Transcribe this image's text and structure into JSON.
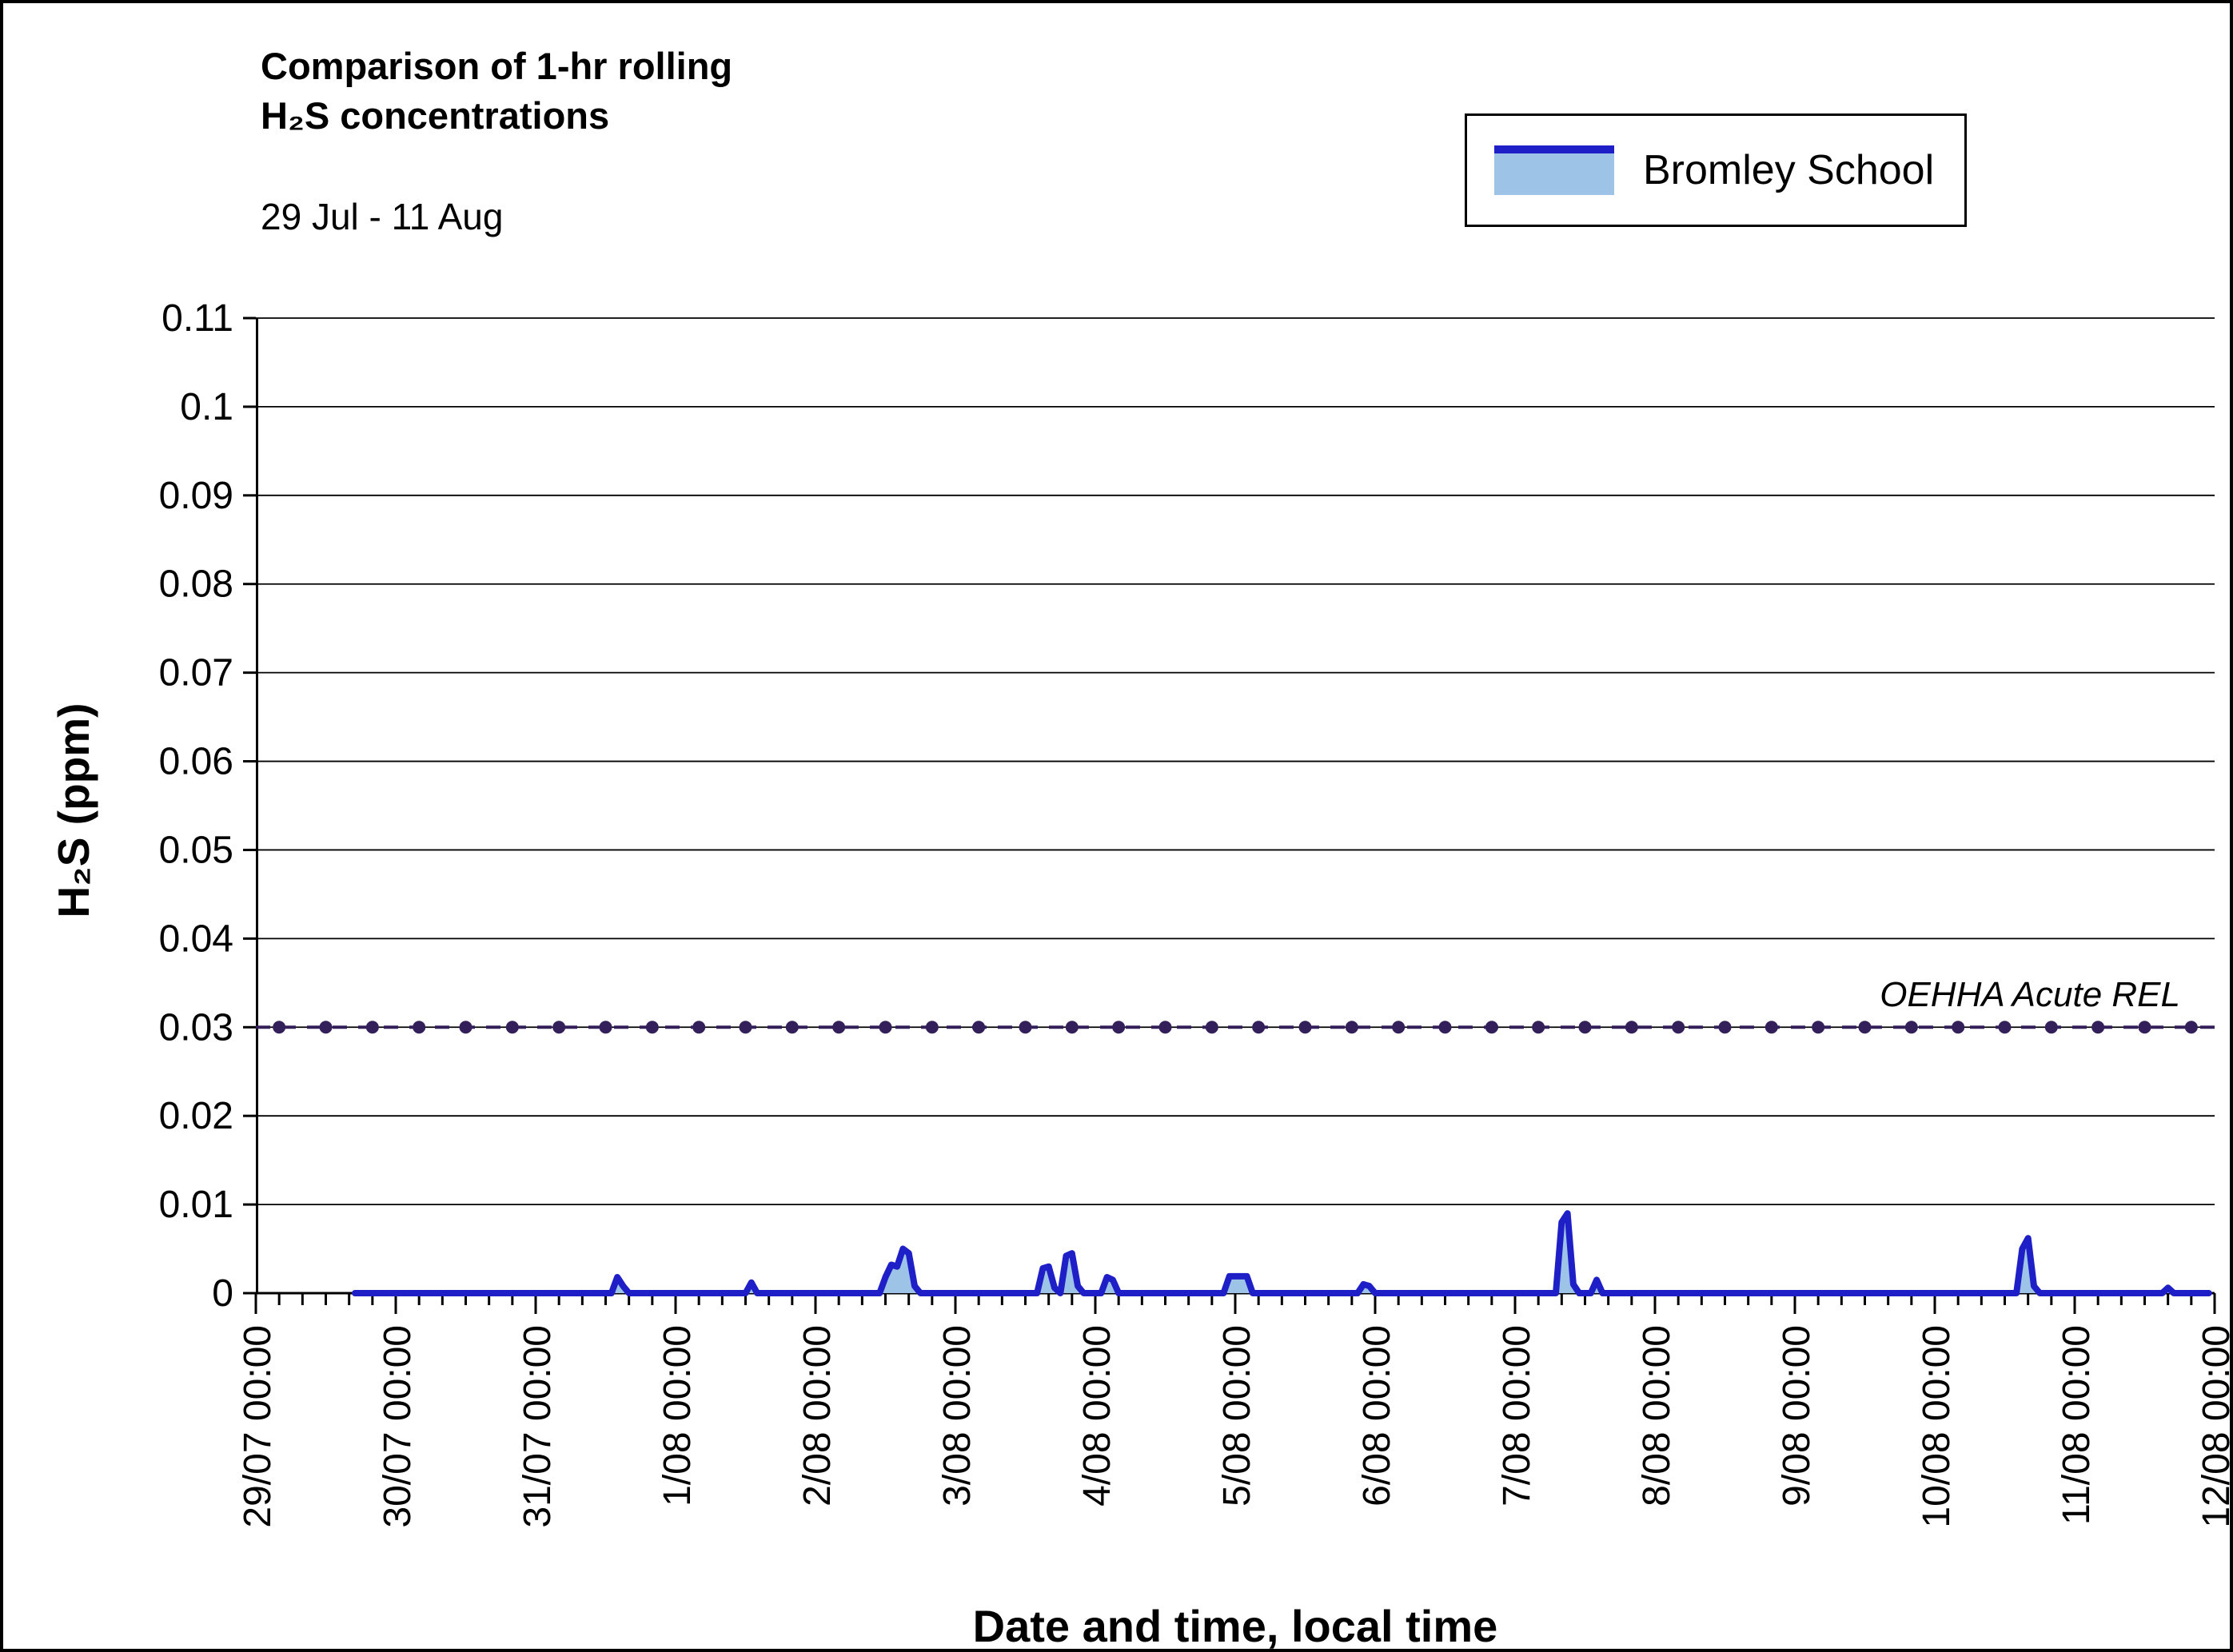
{
  "page": {
    "background": "#ffffff",
    "border_color": "#000000"
  },
  "header": {
    "title_line1": "Comparison of 1-hr rolling",
    "title_line2": "H₂S concentrations",
    "subtitle": "29 Jul - 11 Aug"
  },
  "legend": {
    "label": "Bromley School",
    "line_color": "#1f1fc8",
    "fill_color": "#9dc3e6"
  },
  "chart_data": {
    "type": "area",
    "title": "Comparison of 1-hr rolling H₂S concentrations",
    "subtitle": "29 Jul - 11 Aug",
    "xlabel": "Date and time, local time",
    "ylabel": "H₂S (ppm)",
    "ylim": [
      0,
      0.11
    ],
    "grid": "horizontal",
    "legend_position": "top-right",
    "y_tick_values": [
      0,
      0.01,
      0.02,
      0.03,
      0.04,
      0.05,
      0.06,
      0.07,
      0.08,
      0.09,
      0.1,
      0.11
    ],
    "y_ticks": [
      "0",
      "0.01",
      "0.02",
      "0.03",
      "0.04",
      "0.05",
      "0.06",
      "0.07",
      "0.08",
      "0.09",
      "0.1",
      "0.11"
    ],
    "x_ticks": [
      "29/07 00:00",
      "30/07 00:00",
      "31/07 00:00",
      "1/08 00:00",
      "2/08 00:00",
      "3/08 00:00",
      "4/08 00:00",
      "5/08 00:00",
      "6/08 00:00",
      "7/08 00:00",
      "8/08 00:00",
      "9/08 00:00",
      "10/08 00:00",
      "11/08 00:00",
      "12/08 00:00"
    ],
    "x_total_hours": 336,
    "x_major_every_hours": 24,
    "x_minor_every_hours": 4,
    "series": [
      {
        "name": "Bromley School",
        "color": "#1f1fc8",
        "fill_color": "#9dc3e6",
        "points_hours_ppm": [
          [
            17,
            0
          ],
          [
            61,
            0
          ],
          [
            62,
            0.0018
          ],
          [
            63,
            0.0008
          ],
          [
            64,
            0
          ],
          [
            84,
            0
          ],
          [
            85,
            0.0012
          ],
          [
            86,
            0
          ],
          [
            107,
            0
          ],
          [
            108,
            0.0018
          ],
          [
            109,
            0.0032
          ],
          [
            110,
            0.003
          ],
          [
            111,
            0.005
          ],
          [
            112,
            0.0045
          ],
          [
            113,
            0.0008
          ],
          [
            114,
            0
          ],
          [
            134,
            0
          ],
          [
            135,
            0.0028
          ],
          [
            136,
            0.003
          ],
          [
            137,
            0.0006
          ],
          [
            138,
            0
          ],
          [
            139,
            0.0042
          ],
          [
            140,
            0.0045
          ],
          [
            141,
            0.0008
          ],
          [
            142,
            0
          ],
          [
            145,
            0
          ],
          [
            146,
            0.0018
          ],
          [
            147,
            0.0015
          ],
          [
            148,
            0
          ],
          [
            166,
            0
          ],
          [
            167,
            0.0019
          ],
          [
            170,
            0.0019
          ],
          [
            171,
            0
          ],
          [
            189,
            0
          ],
          [
            190,
            0.001
          ],
          [
            191,
            0.0008
          ],
          [
            192,
            0
          ],
          [
            223,
            0
          ],
          [
            224,
            0.008
          ],
          [
            225,
            0.009
          ],
          [
            226,
            0.001
          ],
          [
            227,
            0
          ],
          [
            229,
            0
          ],
          [
            230,
            0.0015
          ],
          [
            231,
            0
          ],
          [
            302,
            0
          ],
          [
            303,
            0.005
          ],
          [
            304,
            0.0062
          ],
          [
            305,
            0.0008
          ],
          [
            306,
            0
          ],
          [
            327,
            0
          ],
          [
            328,
            0.0006
          ],
          [
            329,
            0
          ],
          [
            335,
            0
          ]
        ]
      }
    ],
    "reference_line": {
      "label": "OEHHA Acute REL",
      "value": 0.03,
      "color": "#33205a",
      "style": "dashed-with-circle-markers",
      "marker_every_hours": 8
    }
  }
}
